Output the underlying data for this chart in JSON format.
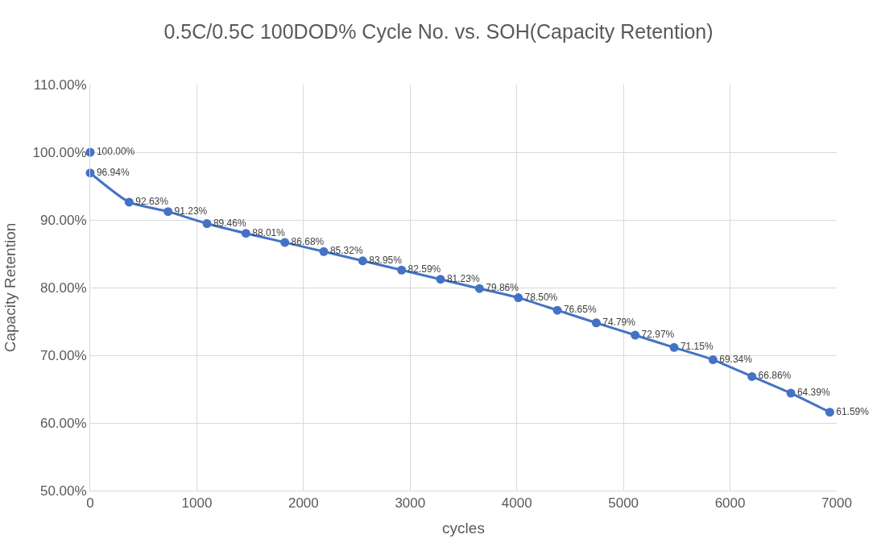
{
  "chart_data": {
    "type": "line",
    "title": "0.5C/0.5C 100DOD% Cycle No. vs. SOH(Capacity Retention)",
    "xlabel": "cycles",
    "ylabel": "Capacity Retention",
    "series": [
      {
        "type": "scatter",
        "color": "#4472c4",
        "x": [
          0
        ],
        "values": [
          100.0
        ],
        "value_labels": [
          "100.00%"
        ]
      },
      {
        "color": "#4472c4",
        "x": [
          0,
          365,
          730,
          1095,
          1460,
          1825,
          2190,
          2555,
          2920,
          3285,
          3650,
          4015,
          4380,
          4745,
          5110,
          5475,
          5840,
          6205,
          6570,
          6935
        ],
        "values": [
          96.94,
          92.63,
          91.23,
          89.46,
          88.01,
          86.68,
          85.32,
          83.95,
          82.59,
          81.23,
          79.86,
          78.5,
          76.65,
          74.79,
          72.97,
          71.15,
          69.34,
          66.86,
          64.39,
          61.59
        ],
        "value_labels": [
          "96.94%",
          "92.63%",
          "91.23%",
          "89.46%",
          "88.01%",
          "86.68%",
          "85.32%",
          "83.95%",
          "82.59%",
          "81.23%",
          "79.86%",
          "78.50%",
          "76.65%",
          "74.79%",
          "72.97%",
          "71.15%",
          "69.34%",
          "66.86%",
          "64.39%",
          "61.59%"
        ]
      }
    ],
    "xlim": [
      0,
      7000
    ],
    "xticks": [
      0,
      1000,
      2000,
      3000,
      4000,
      5000,
      6000,
      7000
    ],
    "ylim": [
      50,
      110
    ],
    "yticks": [
      {
        "value": 50,
        "label": "50.00%"
      },
      {
        "value": 60,
        "label": "60.00%"
      },
      {
        "value": 70,
        "label": "70.00%"
      },
      {
        "value": 80,
        "label": "80.00%"
      },
      {
        "value": 90,
        "label": "90.00%"
      },
      {
        "value": 100,
        "label": "100.00%"
      },
      {
        "value": 110,
        "label": "110.00%"
      }
    ],
    "grid": true,
    "marker": "circle"
  }
}
